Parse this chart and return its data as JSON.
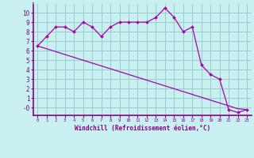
{
  "xlabel": "Windchill (Refroidissement éolien,°C)",
  "background_color": "#c8f0f0",
  "grid_color": "#99cccc",
  "line_color": "#aa00aa",
  "marker_color": "#aa00aa",
  "x_hours": [
    0,
    1,
    2,
    3,
    4,
    5,
    6,
    7,
    8,
    9,
    10,
    11,
    12,
    13,
    14,
    15,
    16,
    17,
    18,
    19,
    20,
    21,
    22,
    23
  ],
  "y_data": [
    6.5,
    7.5,
    8.5,
    8.5,
    8.0,
    9.0,
    8.5,
    7.5,
    8.5,
    9.0,
    9.0,
    9.0,
    9.0,
    9.5,
    10.5,
    9.5,
    8.0,
    8.5,
    4.5,
    3.5,
    3.0,
    -0.2,
    -0.5,
    -0.2
  ],
  "y_linear": [
    6.5,
    6.2,
    5.9,
    5.6,
    5.3,
    5.0,
    4.7,
    4.4,
    4.1,
    3.8,
    3.5,
    3.2,
    2.9,
    2.6,
    2.3,
    2.0,
    1.7,
    1.4,
    1.1,
    0.8,
    0.5,
    0.2,
    -0.1,
    -0.2
  ],
  "ylim": [
    -0.8,
    11.0
  ],
  "yticks": [
    0,
    1,
    2,
    3,
    4,
    5,
    6,
    7,
    8,
    9,
    10
  ],
  "ytick_labels": [
    "-0",
    "1",
    "2",
    "3",
    "4",
    "5",
    "6",
    "7",
    "8",
    "9",
    "10"
  ],
  "font_color": "#880088",
  "font_family": "monospace"
}
